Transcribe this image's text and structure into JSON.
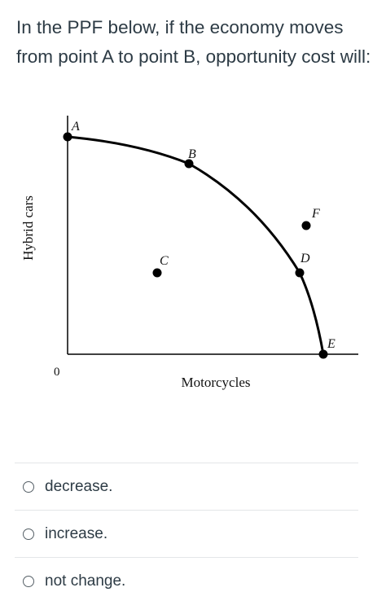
{
  "question": {
    "text": "In the PPF below, if the economy moves from point A to point B, opportunity cost will:"
  },
  "graph": {
    "ylabel": "Hybrid cars",
    "xlabel": "Motorcycles",
    "origin_label": "0",
    "points": [
      {
        "label": "A",
        "on_curve": true
      },
      {
        "label": "B",
        "on_curve": true
      },
      {
        "label": "C",
        "on_curve": false
      },
      {
        "label": "D",
        "on_curve": true
      },
      {
        "label": "E",
        "on_curve": true
      },
      {
        "label": "F",
        "on_curve": false
      }
    ],
    "curve_color": "#000000"
  },
  "answers": [
    {
      "label": "decrease.",
      "selected": false
    },
    {
      "label": "increase.",
      "selected": false
    },
    {
      "label": "not change.",
      "selected": false
    }
  ],
  "colors": {
    "text": "#2d3b45",
    "divider": "#e3e6e8",
    "radio_border": "#555f66"
  }
}
